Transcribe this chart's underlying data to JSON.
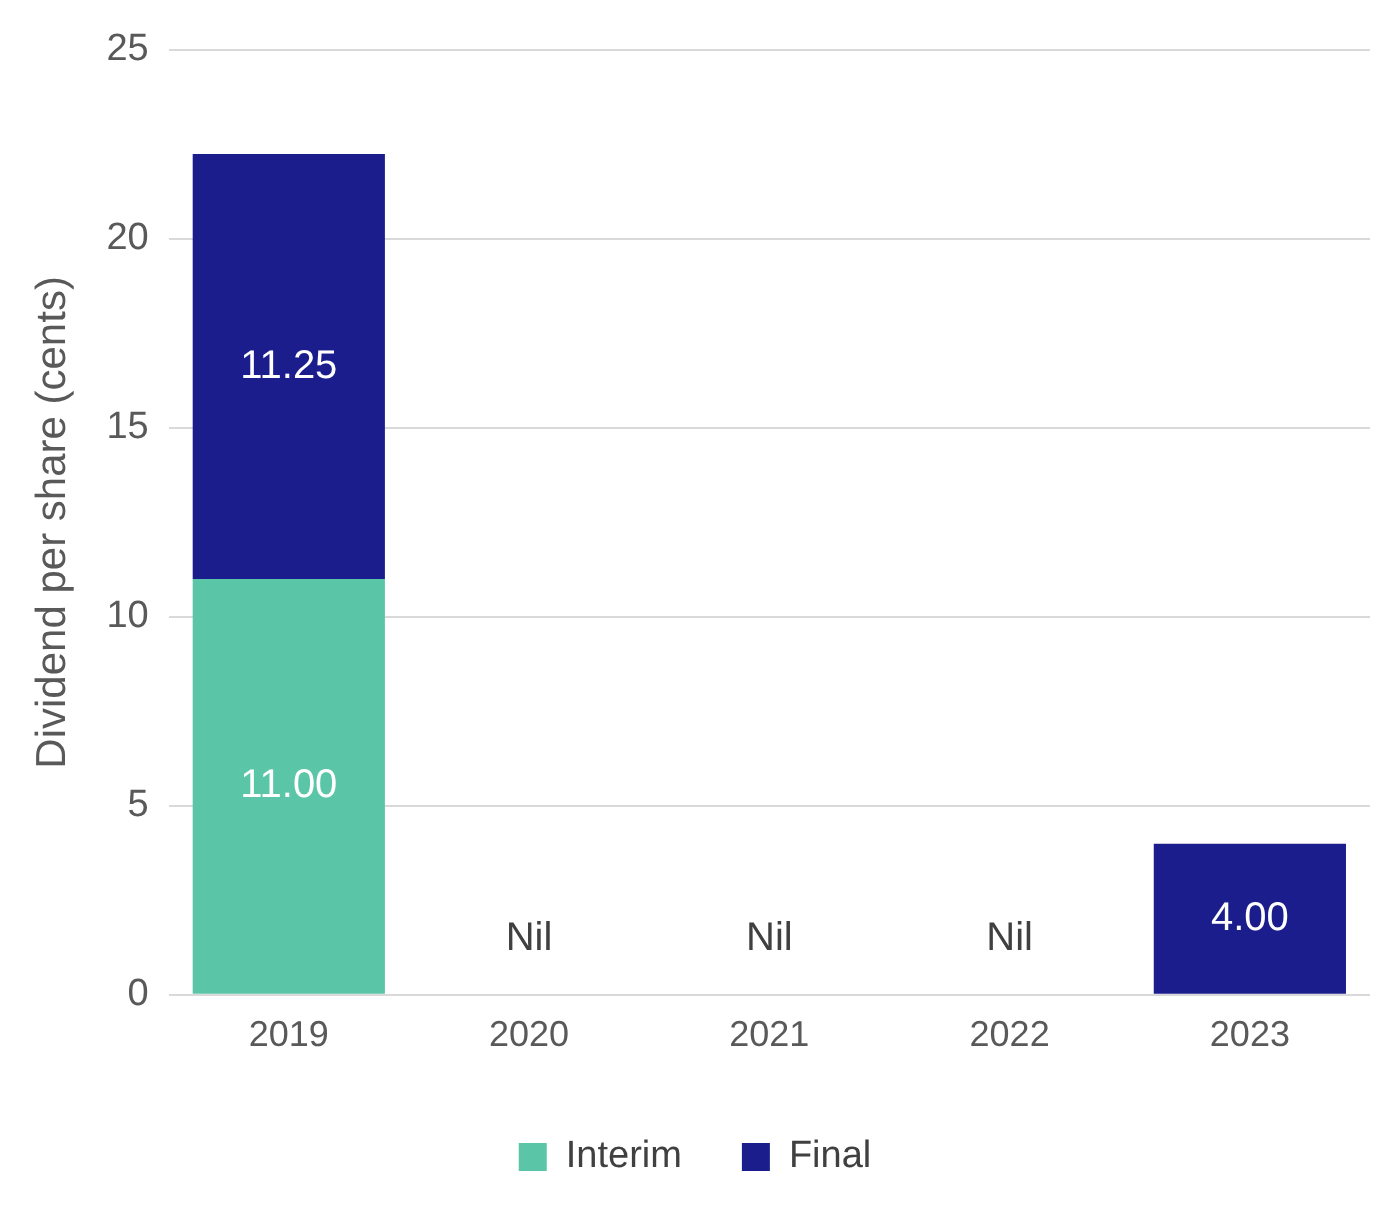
{
  "chart_data": {
    "type": "bar",
    "ylabel": "Dividend per share (cents)",
    "categories": [
      "2019",
      "2020",
      "2021",
      "2022",
      "2023"
    ],
    "stacked": true,
    "series": [
      {
        "name": "Interim",
        "color": "#5bc5a7",
        "values": [
          11,
          0,
          0,
          0,
          0
        ],
        "value_labels": [
          "11.00",
          null,
          null,
          null,
          null
        ]
      },
      {
        "name": "Final",
        "color": "#1b1d8c",
        "values": [
          11.25,
          0,
          0,
          0,
          4
        ],
        "value_labels": [
          "11.25",
          "Nil",
          "Nil",
          "Nil",
          "4.00"
        ]
      }
    ],
    "ylim": [
      0,
      25
    ],
    "yticks": [
      0,
      5,
      10,
      15,
      20,
      25
    ],
    "grid": "y",
    "legend": "bottom"
  }
}
